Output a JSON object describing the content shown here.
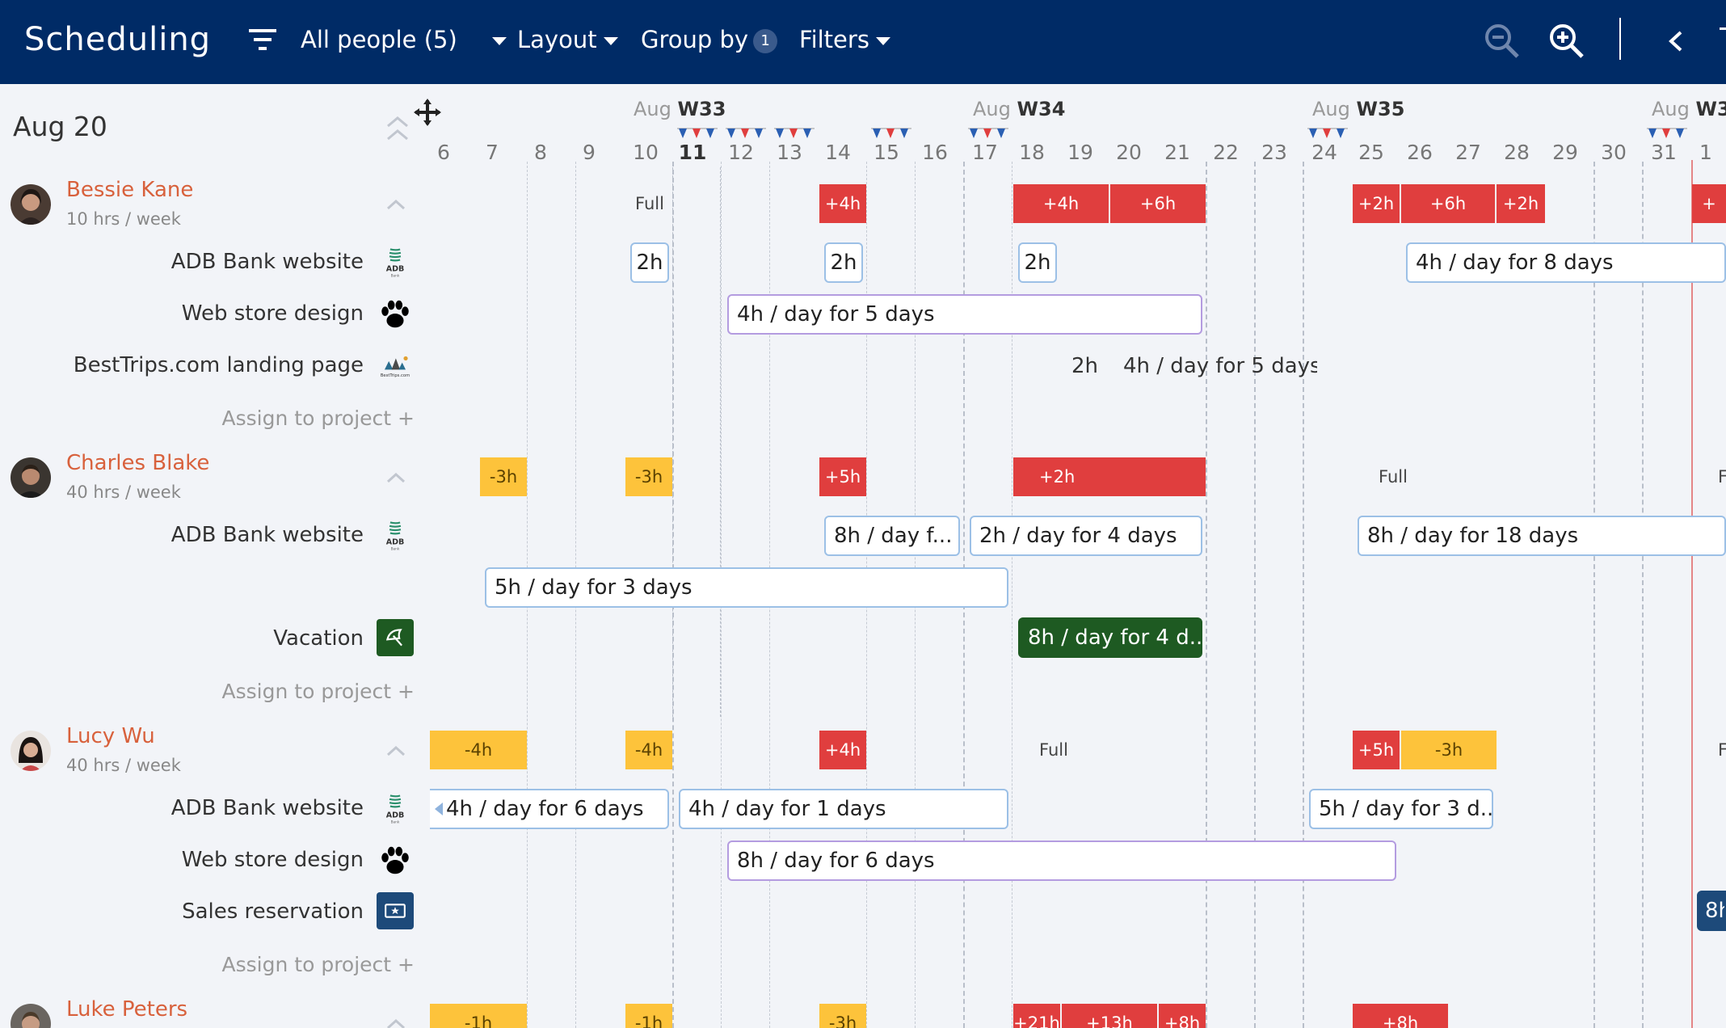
{
  "header": {
    "title": "Scheduling",
    "people_filter": "All people (5)",
    "layout": "Layout",
    "group_by": "Group by",
    "group_by_count": "1",
    "filters": "Filters"
  },
  "current_date_label": "Aug 20",
  "weeks": [
    {
      "month": "Aug",
      "week": "W33"
    },
    {
      "month": "Aug",
      "week": "W34"
    },
    {
      "month": "Aug",
      "week": "W35"
    },
    {
      "month": "Aug",
      "week": "W3"
    }
  ],
  "days": [
    "6",
    "7",
    "8",
    "9",
    "10",
    "11",
    "12",
    "13",
    "14",
    "15",
    "16",
    "17",
    "18",
    "19",
    "20",
    "21",
    "22",
    "23",
    "24",
    "25",
    "26",
    "27",
    "28",
    "29",
    "30",
    "31",
    "1"
  ],
  "today_day": "11",
  "people": [
    {
      "name": "Bessie Kane",
      "hours": "10 hrs / week",
      "utilization": [
        {
          "label": "Full"
        },
        {
          "label": "+4h"
        },
        {
          "label": "+4h"
        },
        {
          "label": "+6h"
        },
        {
          "label": "+2h"
        },
        {
          "label": "+6h"
        },
        {
          "label": "+2h"
        },
        {
          "label": "+"
        }
      ],
      "projects": [
        {
          "name": "ADB Bank website",
          "assignments": [
            "2h",
            "2h",
            "2h",
            "4h / day for 8 days"
          ]
        },
        {
          "name": "Web store design",
          "assignments": [
            "4h / day for 5 days"
          ]
        },
        {
          "name": "BestTrips.com landing page",
          "assignments": [
            "2h",
            "4h / day for 5 days"
          ]
        }
      ],
      "assign_label": "Assign to project +"
    },
    {
      "name": "Charles Blake",
      "hours": "40 hrs / week",
      "utilization": [
        {
          "label": "-3h"
        },
        {
          "label": "-3h"
        },
        {
          "label": "+5h"
        },
        {
          "label": "+2h"
        },
        {
          "label": "Full"
        },
        {
          "label": "F"
        }
      ],
      "projects": [
        {
          "name": "ADB Bank website",
          "assignments": [
            "8h / day f...",
            "2h / day for 4 days",
            "8h / day for 18 days",
            "5h / day for 3 days"
          ]
        },
        {
          "name": "Vacation",
          "assignments": [
            "8h / day for 4 d..."
          ]
        }
      ],
      "assign_label": "Assign to project +"
    },
    {
      "name": "Lucy Wu",
      "hours": "40 hrs / week",
      "utilization": [
        {
          "label": "-4h"
        },
        {
          "label": "-4h"
        },
        {
          "label": "+4h"
        },
        {
          "label": "Full"
        },
        {
          "label": "+5h"
        },
        {
          "label": "-3h"
        },
        {
          "label": "F"
        }
      ],
      "projects": [
        {
          "name": "ADB Bank website",
          "assignments": [
            "4h / day for 6 days",
            "4h / day for 1 days",
            "5h / day for 3 d..."
          ]
        },
        {
          "name": "Web store design",
          "assignments": [
            "8h / day for 6 days"
          ]
        },
        {
          "name": "Sales reservation",
          "assignments": [
            "8h"
          ]
        }
      ],
      "assign_label": "Assign to project +"
    },
    {
      "name": "Luke Peters",
      "utilization": [
        {
          "label": "-1h"
        },
        {
          "label": "-1h"
        },
        {
          "label": "-3h"
        },
        {
          "label": "+21h"
        },
        {
          "label": "+13h"
        },
        {
          "label": "+8h"
        },
        {
          "label": "+8h"
        }
      ]
    }
  ],
  "colors": {
    "header_bg": "#002b66",
    "over": "#e03e3e",
    "under": "#fdc33b",
    "vacation": "#1e5a22",
    "name": "#d8613c"
  }
}
